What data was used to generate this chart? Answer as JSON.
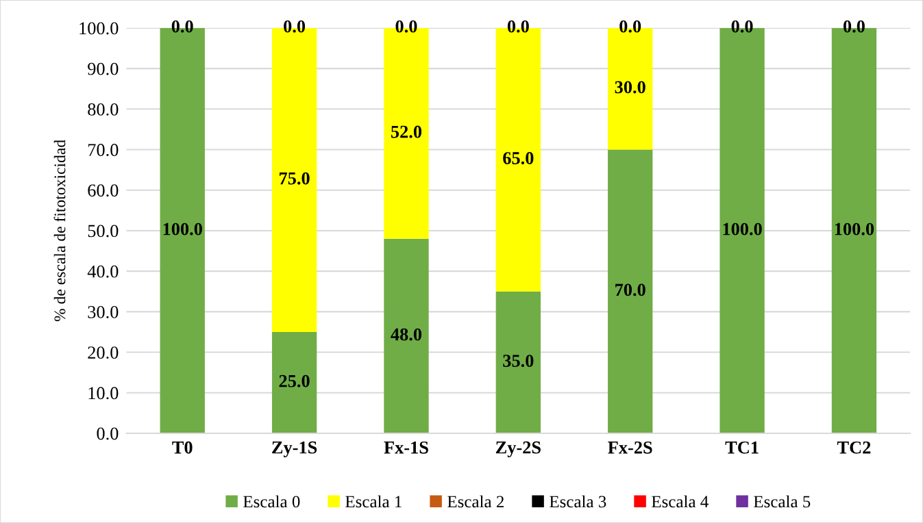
{
  "chart_data": {
    "type": "bar",
    "stacked": true,
    "ylabel": "% de escala de fitotoxicidad",
    "categories": [
      "T0",
      "Zy-1S",
      "Fx-1S",
      "Zy-2S",
      "Fx-2S",
      "TC1",
      "TC2"
    ],
    "series": [
      {
        "name": "Escala 0",
        "color": "#70ad47",
        "values": [
          100,
          25,
          48,
          35,
          70,
          100,
          100
        ],
        "value_labels": [
          "100.0",
          "25.0",
          "48.0",
          "35.0",
          "70.0",
          "100.0",
          "100.0"
        ]
      },
      {
        "name": "Escala 1",
        "color": "#ffff00",
        "values": [
          0,
          75,
          52,
          65,
          30,
          0,
          0
        ],
        "value_labels": [
          null,
          "75.0",
          "52.0",
          "65.0",
          "30.0",
          null,
          null
        ]
      },
      {
        "name": "Escala 2",
        "color": "#c55a11",
        "values": [
          0,
          0,
          0,
          0,
          0,
          0,
          0
        ]
      },
      {
        "name": "Escala 3",
        "color": "#000000",
        "values": [
          0,
          0,
          0,
          0,
          0,
          0,
          0
        ]
      },
      {
        "name": "Escala 4",
        "color": "#ff0000",
        "values": [
          0,
          0,
          0,
          0,
          0,
          0,
          0
        ]
      },
      {
        "name": "Escala 5",
        "color": "#7030a0",
        "values": [
          0,
          0,
          0,
          0,
          0,
          0,
          0
        ],
        "value_labels": [
          "0.0",
          "0.0",
          "0.0",
          "0.0",
          "0.0",
          "0.0",
          "0.0"
        ]
      }
    ],
    "ylim": [
      0,
      100
    ],
    "yticks": [
      {
        "value": 0,
        "label": "0.0"
      },
      {
        "value": 10,
        "label": "10.0"
      },
      {
        "value": 20,
        "label": "20.0"
      },
      {
        "value": 30,
        "label": "30.0"
      },
      {
        "value": 40,
        "label": "40.0"
      },
      {
        "value": 50,
        "label": "50.0"
      },
      {
        "value": 60,
        "label": "60.0"
      },
      {
        "value": 70,
        "label": "70.0"
      },
      {
        "value": 80,
        "label": "80.0"
      },
      {
        "value": 90,
        "label": "90.0"
      },
      {
        "value": 100,
        "label": "100.0"
      }
    ],
    "grid": "y",
    "legend": "bottom"
  }
}
